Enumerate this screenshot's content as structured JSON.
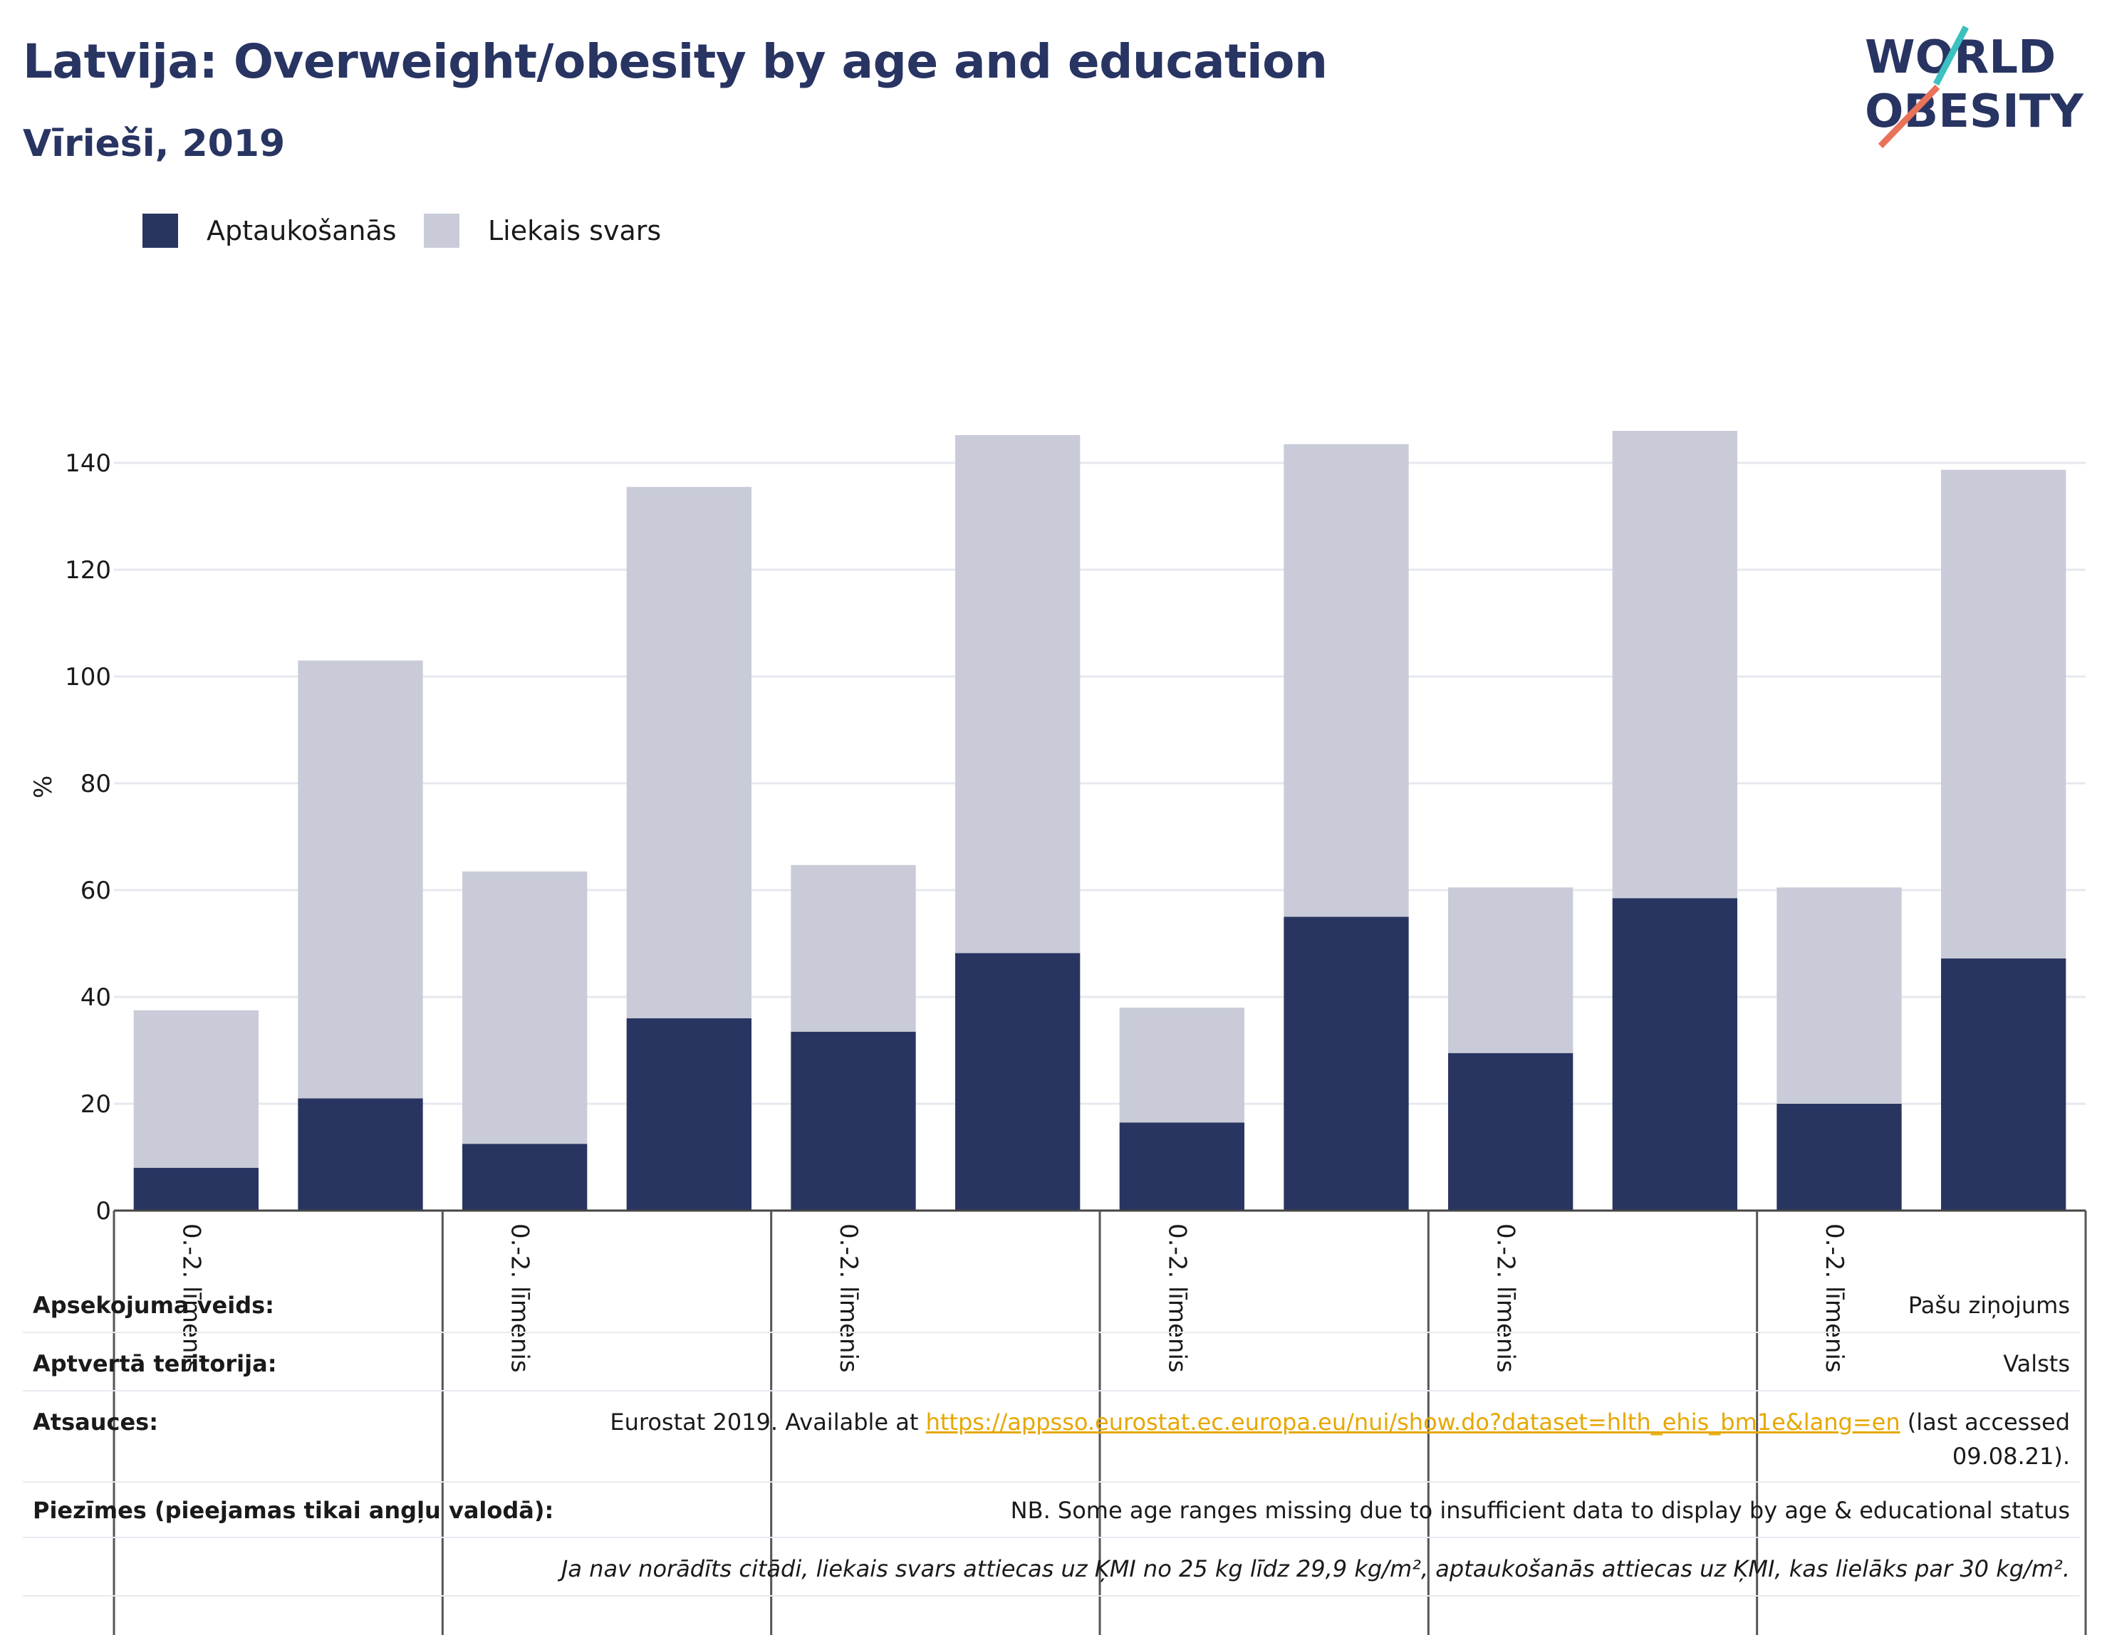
{
  "header": {
    "title": "Latvija: Overweight/obesity by age and education",
    "subtitle": "Vīrieši, 2019"
  },
  "logo": {
    "line1": "WORLD",
    "line2": "OBESITY",
    "name": "world-obesity-logo"
  },
  "colors": {
    "title": "#283462",
    "obesity": "#293561",
    "overweight": "#c9ccd8",
    "grid": "#e6e8ef",
    "link": "#e6a700",
    "logo_teal": "#3cc0c0",
    "logo_coral": "#e8735a"
  },
  "chart_data": {
    "type": "bar",
    "stacked": true,
    "ylabel": "%",
    "xlabel": "",
    "ylim": [
      0,
      152
    ],
    "yticks": [
      0,
      20,
      40,
      60,
      80,
      100,
      120,
      140
    ],
    "grid": true,
    "legend_position": "top-left",
    "category_labels": [
      "0.-2. līmenis",
      "",
      "0.-2. līmenis",
      "",
      "0.-2. līmenis",
      "",
      "0.-2. līmenis",
      "",
      "0.-2. līmenis",
      "",
      "0.-2. līmenis",
      ""
    ],
    "series": [
      {
        "name": "Aptaukošanās",
        "color": "#293561",
        "values": [
          8.0,
          21.0,
          12.5,
          36.0,
          33.5,
          48.2,
          16.5,
          55.0,
          29.5,
          58.5,
          20.0,
          47.2
        ]
      },
      {
        "name": "Liekais svars",
        "color": "#c9ccd8",
        "values": [
          29.5,
          82.0,
          51.0,
          99.5,
          31.2,
          97.0,
          21.5,
          88.5,
          31.0,
          87.5,
          40.5,
          91.5
        ]
      }
    ]
  },
  "info": {
    "survey_type_label": "Apsekojuma veids:",
    "survey_type_value": "Pašu ziņojums",
    "coverage_label": "Aptvertā teritorija:",
    "coverage_value": "Valsts",
    "sources_label": "Atsauces:",
    "sources_prefix": "Eurostat 2019. Available at ",
    "sources_link": "https://appsso.eurostat.ec.europa.eu/nui/show.do?dataset=hlth_ehis_bm1e&lang=en",
    "sources_suffix": " (last accessed",
    "sources_date": "09.08.21).",
    "notes_label": "Piezīmes (pieejamas tikai angļu valodā):",
    "notes_value": "NB. Some age ranges missing due to insufficient data to display by age & educational status",
    "definition_note": "Ja nav norādīts citādi, liekais svars attiecas uz ĶMI no 25 kg līdz 29,9 kg/m², aptaukošanās attiecas uz ĶMI, kas lielāks par 30 kg/m²."
  }
}
